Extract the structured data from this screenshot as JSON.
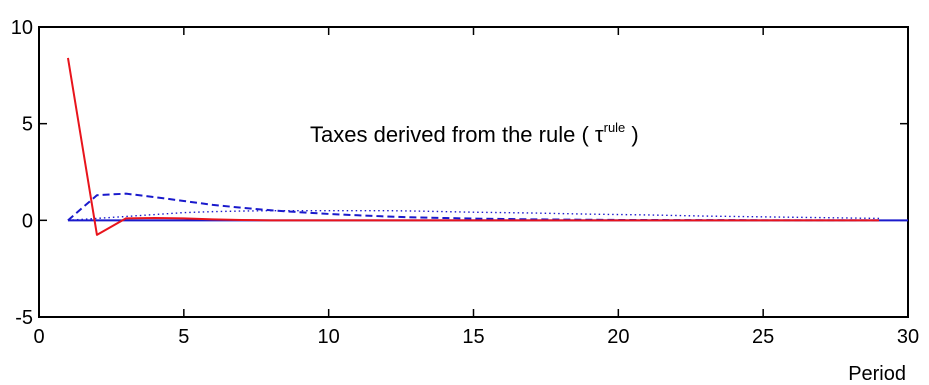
{
  "chart_data": {
    "type": "line",
    "xlabel": "Period",
    "ylabel": "",
    "xlim": [
      0,
      30
    ],
    "ylim": [
      -5,
      10
    ],
    "xticks": [
      "0",
      "5",
      "10",
      "15",
      "20",
      "25",
      "30"
    ],
    "yticks": [
      "-5",
      "0",
      "5",
      "10"
    ],
    "grid": false,
    "annotation": {
      "text": "Taxes derived from the rule ( ",
      "symbol": "τ",
      "superscript": "rule",
      "close": " )"
    },
    "series": [
      {
        "color": "#e8141c",
        "style": "solid",
        "x": [
          1,
          2,
          3,
          4,
          5,
          6,
          7,
          8,
          9,
          10,
          11,
          12,
          13,
          14,
          15,
          16,
          17,
          18,
          19,
          20,
          21,
          22,
          23,
          24,
          25,
          26,
          27,
          28,
          29
        ],
        "y": [
          8.4,
          -0.75,
          0.1,
          0.12,
          0.1,
          0.05,
          0.02,
          0,
          0,
          0,
          0,
          0,
          0,
          0,
          0,
          0,
          0,
          0,
          0,
          0,
          0,
          0,
          0,
          0,
          0,
          0,
          0,
          0,
          0
        ]
      },
      {
        "color": "#1a1acc",
        "style": "dashed",
        "x": [
          1,
          2,
          3,
          4,
          5,
          6,
          7,
          8,
          9,
          10,
          11,
          12,
          13,
          14,
          15,
          16,
          17,
          18,
          19,
          20,
          21,
          22,
          23,
          24,
          25,
          26,
          27,
          28,
          29
        ],
        "y": [
          0,
          1.3,
          1.38,
          1.2,
          1.0,
          0.8,
          0.65,
          0.52,
          0.42,
          0.33,
          0.26,
          0.2,
          0.15,
          0.12,
          0.09,
          0.07,
          0.05,
          0.04,
          0.03,
          0.02,
          0.02,
          0.01,
          0.01,
          0.01,
          0,
          0,
          0,
          0,
          0
        ]
      },
      {
        "color": "#1a1acc",
        "style": "dotted",
        "x": [
          1,
          2,
          3,
          4,
          5,
          6,
          7,
          8,
          9,
          10,
          11,
          12,
          13,
          14,
          15,
          16,
          17,
          18,
          19,
          20,
          21,
          22,
          23,
          24,
          25,
          26,
          27,
          28,
          29
        ],
        "y": [
          0,
          0.1,
          0.2,
          0.3,
          0.4,
          0.45,
          0.48,
          0.5,
          0.5,
          0.5,
          0.5,
          0.5,
          0.48,
          0.45,
          0.42,
          0.4,
          0.38,
          0.35,
          0.32,
          0.3,
          0.28,
          0.25,
          0.22,
          0.2,
          0.18,
          0.16,
          0.14,
          0.12,
          0.1
        ]
      },
      {
        "color": "#1a1acc",
        "style": "solid",
        "x": [
          1,
          2,
          3,
          4,
          5,
          6,
          7,
          8,
          9,
          10,
          11,
          12,
          13,
          14,
          15,
          16,
          17,
          18,
          19,
          20,
          21,
          22,
          23,
          24,
          25,
          26,
          27,
          28,
          29,
          30
        ],
        "y": [
          0,
          0,
          0,
          0,
          0,
          0,
          0,
          0,
          0,
          0,
          0,
          0,
          0,
          0,
          0,
          0,
          0,
          0,
          0,
          0,
          0,
          0,
          0,
          0,
          0,
          0,
          0,
          0,
          0,
          0
        ]
      }
    ]
  }
}
